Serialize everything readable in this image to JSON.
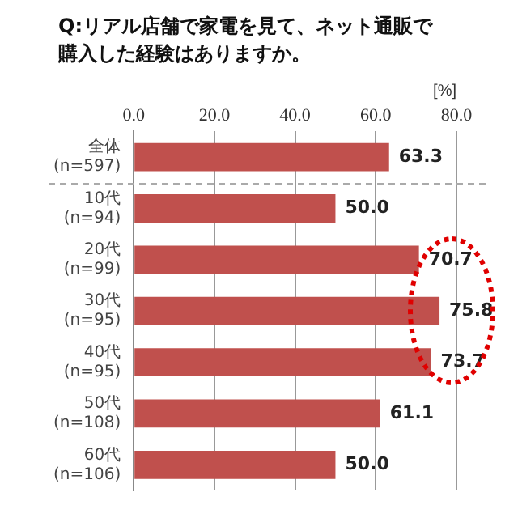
{
  "chart_data": {
    "type": "bar",
    "orientation": "horizontal",
    "title": "Q:リアル店舗で家電を見て、ネット通販で購入した経験はありますか。",
    "xlabel": "[%]",
    "categories": [
      "全体\n(n=597)",
      "10代\n(n=94)",
      "20代\n(n=99)",
      "30代\n(n=95)",
      "40代\n(n=95)",
      "50代\n(n=108)",
      "60代\n(n=106)"
    ],
    "values": [
      63.3,
      50.0,
      70.7,
      75.8,
      73.7,
      61.1,
      50.0
    ],
    "value_labels": [
      "63.3",
      "50.0",
      "70.7",
      "75.8",
      "73.7",
      "61.1",
      "50.0"
    ],
    "color": "#c0504d",
    "xlim": [
      0,
      80
    ],
    "xticks": [
      {
        "value": 0,
        "label": "0.0"
      },
      {
        "value": 20,
        "label": "20.0"
      },
      {
        "value": 40,
        "label": "40.0"
      },
      {
        "value": 60,
        "label": "60.0"
      },
      {
        "value": 80,
        "label": "80.0"
      }
    ],
    "grid": "x",
    "legend": false
  }
}
